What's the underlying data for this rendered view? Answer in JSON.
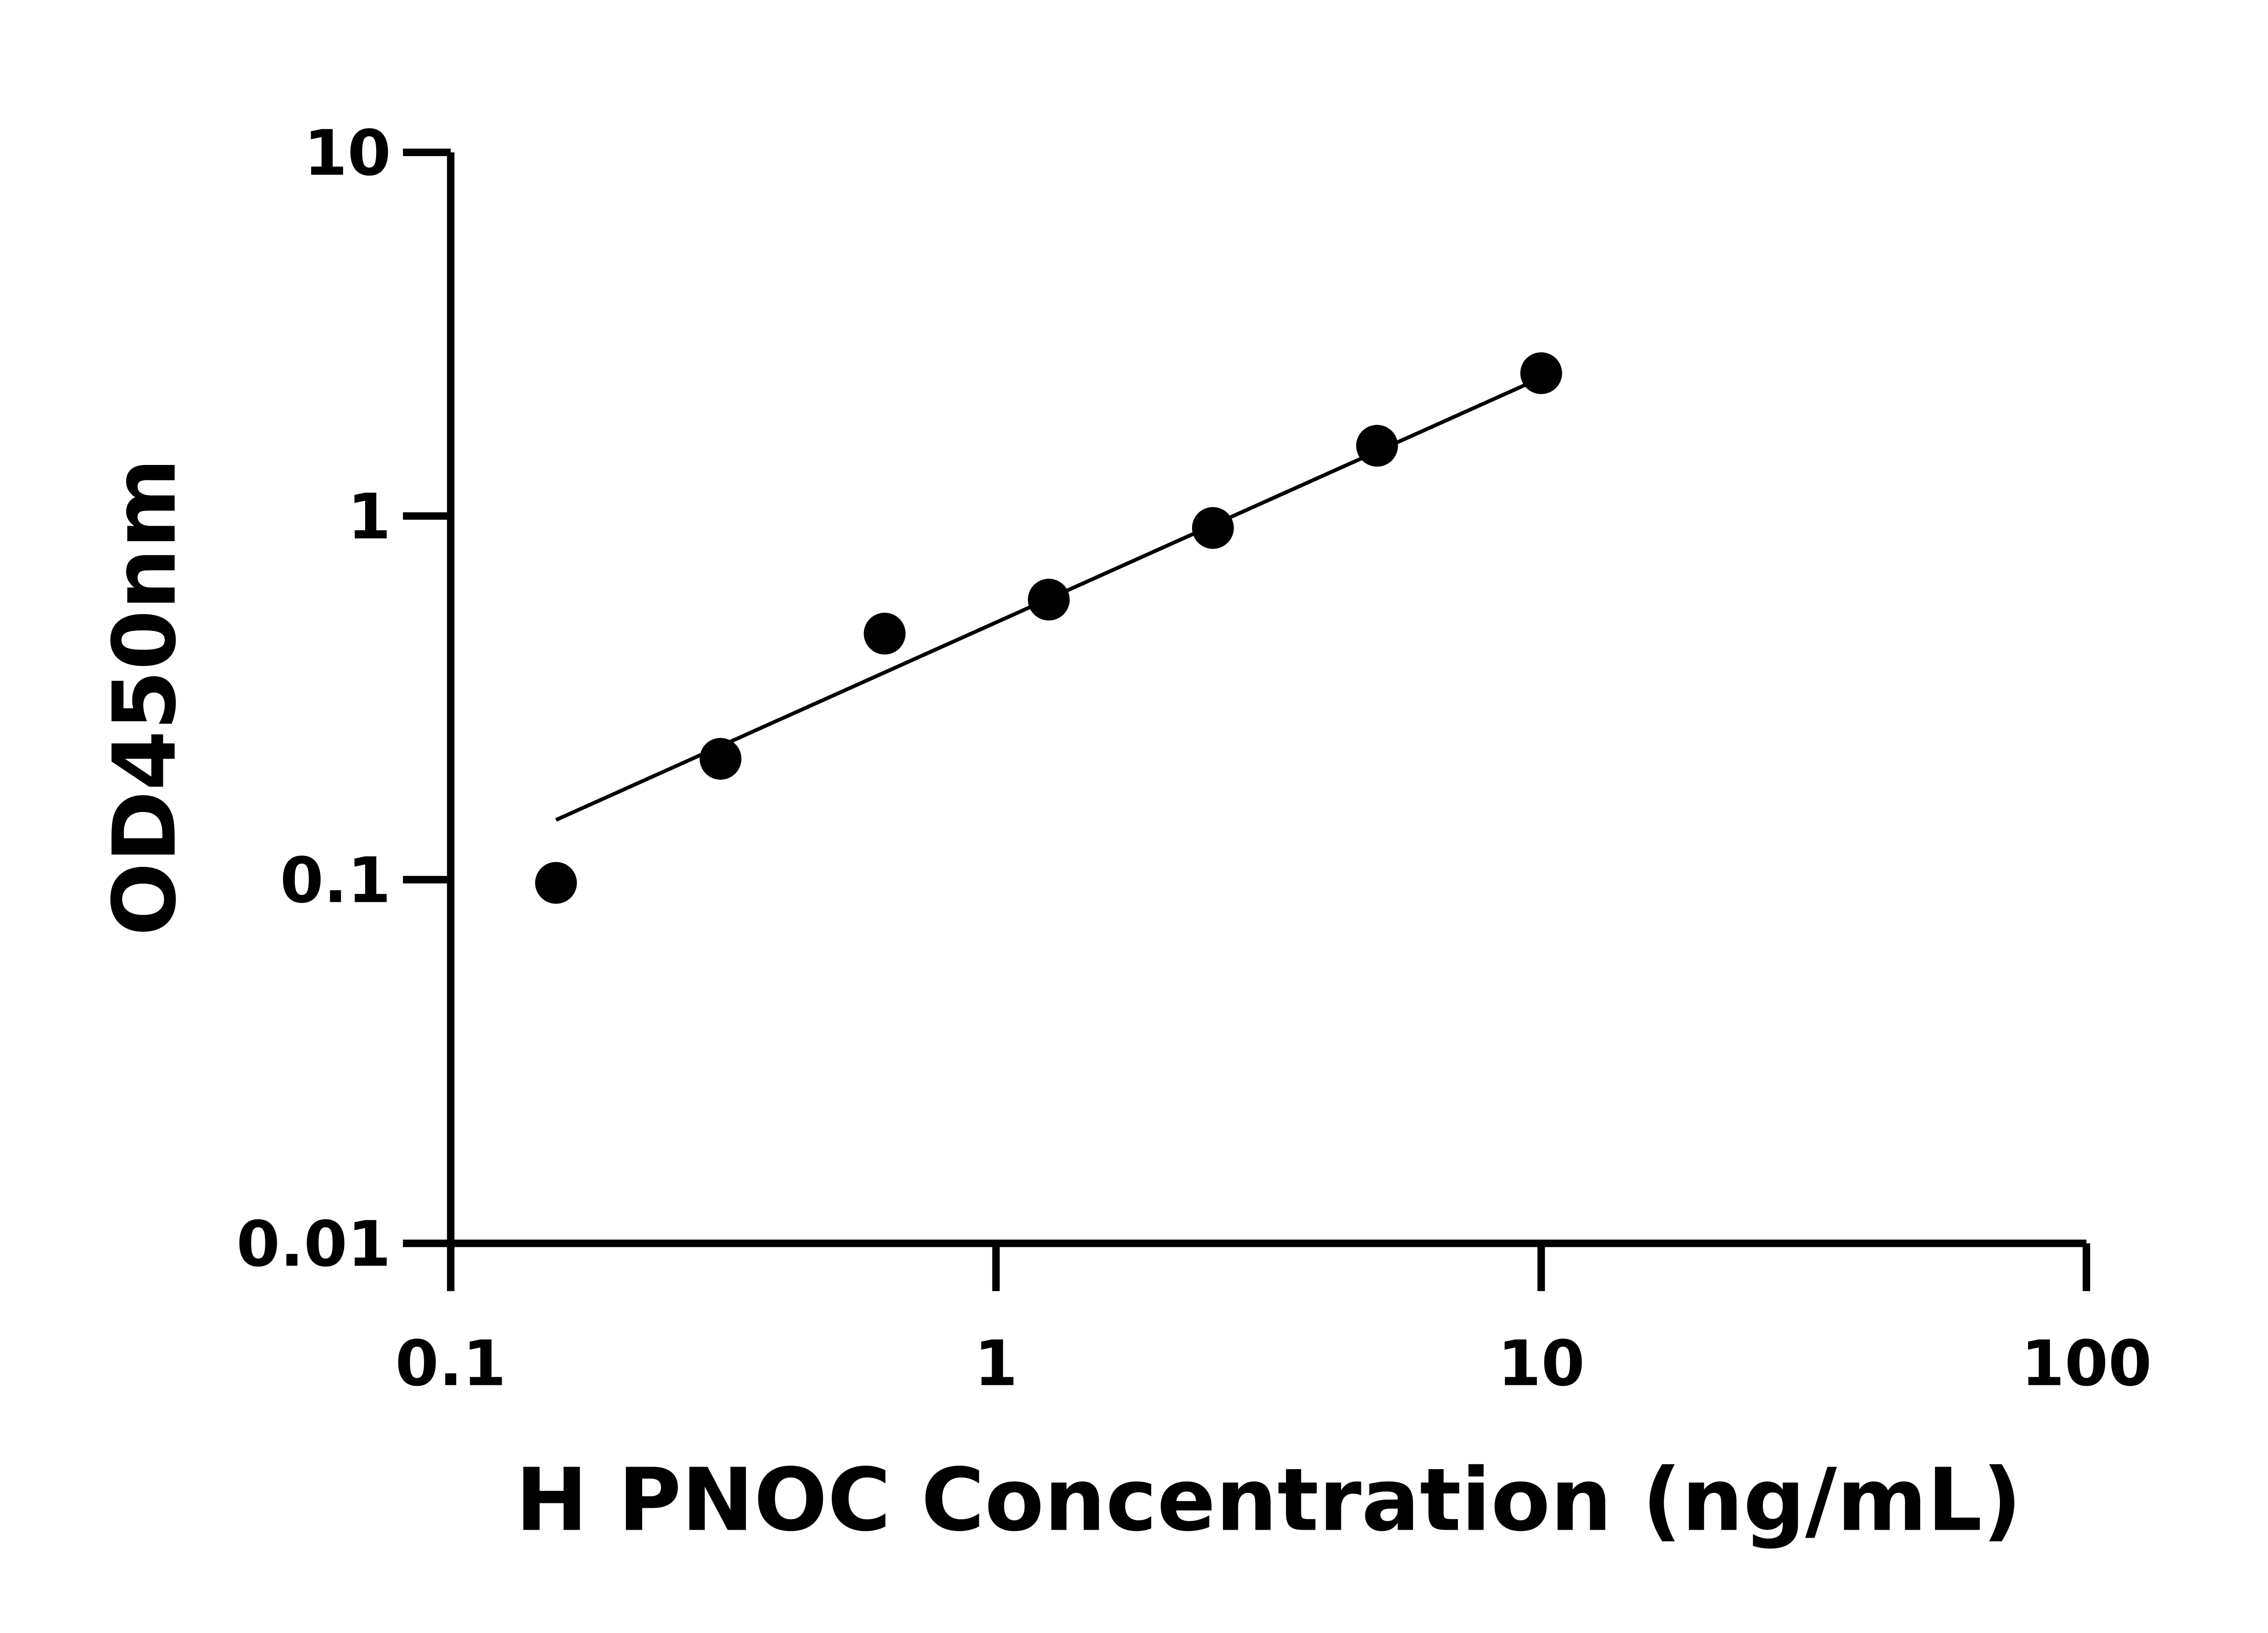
{
  "chart_data": {
    "type": "scatter",
    "title": "",
    "xlabel": "H PNOC Concentration (ng/mL)",
    "ylabel": "OD450nm",
    "xscale": "log",
    "yscale": "log",
    "xlim": [
      0.1,
      100
    ],
    "ylim": [
      0.01,
      10
    ],
    "xticks": [
      "0.1",
      "1",
      "10",
      "100"
    ],
    "yticks": [
      "0.01",
      "0.1",
      "1",
      "10"
    ],
    "grid": false,
    "marker_color": "#000000",
    "series": [
      {
        "x": [
          0.156,
          0.3125,
          0.625,
          1.25,
          2.5,
          5,
          10
        ],
        "y": [
          0.098,
          0.215,
          0.475,
          0.589,
          0.927,
          1.56,
          2.47
        ]
      }
    ],
    "fit_line": {
      "x": [
        0.156,
        10
      ],
      "y": [
        0.146,
        2.4
      ]
    }
  }
}
